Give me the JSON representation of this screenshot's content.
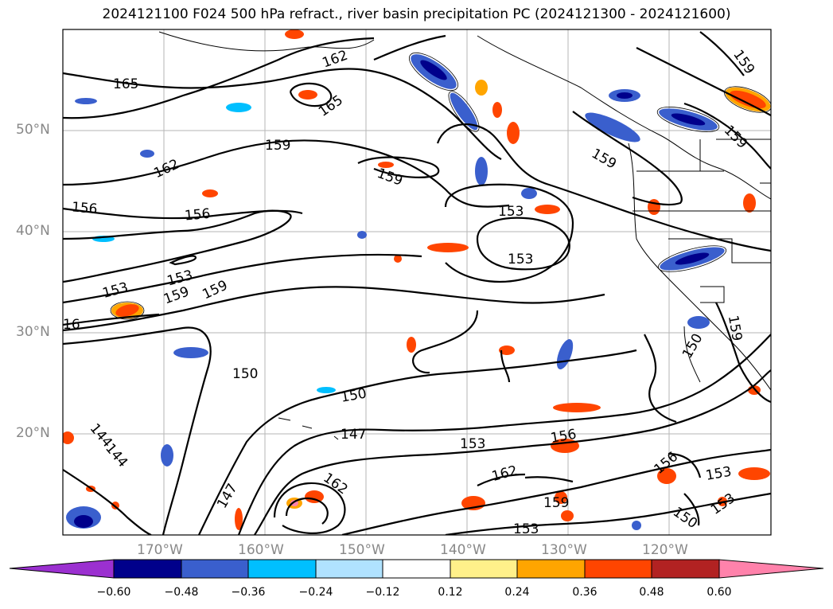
{
  "title": "2024121100 F024 500 hPa refract., river basin precipitation PC (2024121300 - 2024121600)",
  "lat_labels": [
    "50°N",
    "40°N",
    "30°N",
    "20°N"
  ],
  "lon_labels": [
    "170°W",
    "160°W",
    "150°W",
    "140°W",
    "130°W",
    "120°W"
  ],
  "colorbar": {
    "ticks": [
      "−0.60",
      "−0.48",
      "−0.36",
      "−0.24",
      "−0.12",
      "0.12",
      "0.24",
      "0.36",
      "0.48",
      "0.60"
    ],
    "colors": {
      "under": "#9b30d0",
      "c1": "#00008b",
      "c2": "#3a5fcd",
      "c3": "#00bfff",
      "c4": "#b0e2ff",
      "c5": "#ffffff",
      "c6": "#fff08a",
      "c7": "#ffa500",
      "c8": "#ff4500",
      "c9": "#b22222",
      "over": "#ff82ab"
    }
  },
  "contour_labels": [
    "165",
    "162",
    "165",
    "159",
    "162",
    "159",
    "159",
    "159",
    "156",
    "159",
    "159",
    "156",
    "153",
    "153",
    "159",
    "153",
    "16",
    "150",
    "150",
    "147",
    "144",
    "144",
    "147",
    "162",
    "153",
    "156",
    "162",
    "159",
    "153",
    "156",
    "153",
    "150",
    "153",
    "150",
    "159",
    "153"
  ]
}
